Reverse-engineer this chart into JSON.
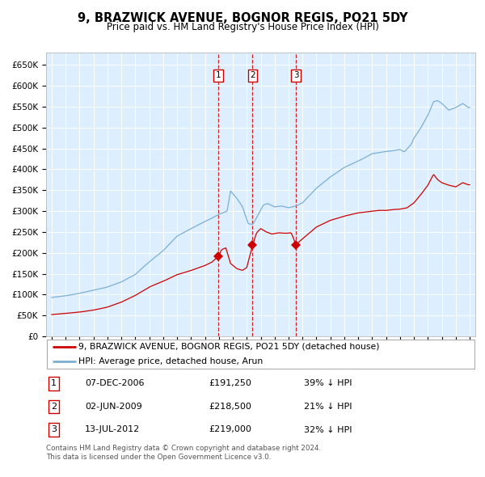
{
  "title": "9, BRAZWICK AVENUE, BOGNOR REGIS, PO21 5DY",
  "subtitle": "Price paid vs. HM Land Registry's House Price Index (HPI)",
  "red_label": "9, BRAZWICK AVENUE, BOGNOR REGIS, PO21 5DY (detached house)",
  "blue_label": "HPI: Average price, detached house, Arun",
  "transactions": [
    {
      "num": 1,
      "date": "07-DEC-2006",
      "price": 191250,
      "pct": "39%",
      "dir": "↓"
    },
    {
      "num": 2,
      "date": "02-JUN-2009",
      "price": 218500,
      "pct": "21%",
      "dir": "↓"
    },
    {
      "num": 3,
      "date": "13-JUL-2012",
      "price": 219000,
      "pct": "32%",
      "dir": "↓"
    }
  ],
  "sale_dates_decimal": [
    2006.935,
    2009.419,
    2012.531
  ],
  "sale_prices": [
    191250,
    218500,
    219000
  ],
  "red_color": "#cc0000",
  "blue_color": "#7bafd4",
  "background_color": "#ddeeff",
  "grid_color": "#ffffff",
  "ylim": [
    0,
    680000
  ],
  "yticks": [
    0,
    50000,
    100000,
    150000,
    200000,
    250000,
    300000,
    350000,
    400000,
    450000,
    500000,
    550000,
    600000,
    650000
  ],
  "footer_line1": "Contains HM Land Registry data © Crown copyright and database right 2024.",
  "footer_line2": "This data is licensed under the Open Government Licence v3.0."
}
